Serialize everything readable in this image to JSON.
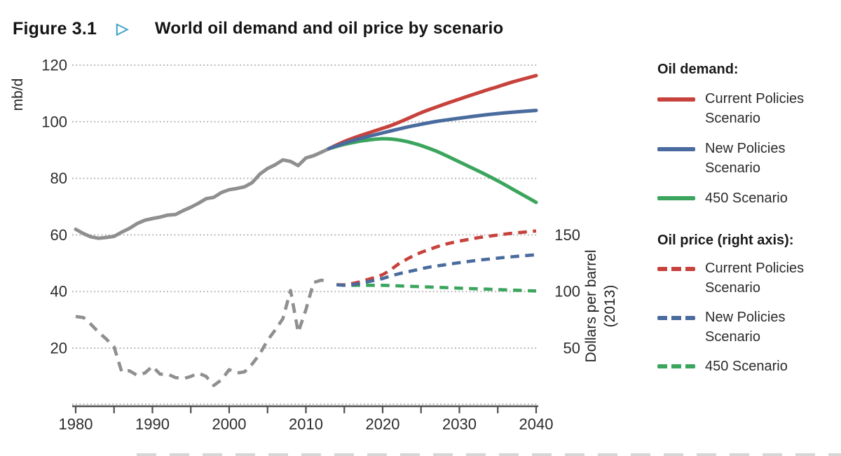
{
  "figure": {
    "label": "Figure 3.1",
    "arrow": "▷",
    "title": "World oil demand and oil price by scenario"
  },
  "colors": {
    "red": "#c7423c",
    "blue": "#4a6b9d",
    "green": "#3ba55d",
    "gray": "#8f8f8f",
    "grid": "#b3b3b3",
    "axis": "#4f4f4f",
    "tick_text": "#2d2d2d",
    "teal_arrow": "#3fa3c4"
  },
  "legend": {
    "demand": {
      "header": "Oil demand:",
      "items": [
        {
          "label": "Current Policies Scenario",
          "color": "red",
          "style": "solid"
        },
        {
          "label": "New Policies Scenario",
          "color": "blue",
          "style": "solid"
        },
        {
          "label": "450 Scenario",
          "color": "green",
          "style": "solid"
        }
      ]
    },
    "price": {
      "header": "Oil price (right axis):",
      "items": [
        {
          "label": "Current Policies Scenario",
          "color": "red",
          "style": "dashed"
        },
        {
          "label": "New Policies Scenario",
          "color": "blue",
          "style": "dashed"
        },
        {
          "label": "450 Scenario",
          "color": "green",
          "style": "dashed"
        }
      ]
    }
  },
  "chart_data": {
    "type": "line",
    "title": "World oil demand and oil price by scenario",
    "x_axis": {
      "range": [
        1980,
        2040
      ],
      "major_ticks": [
        1980,
        1990,
        2000,
        2010,
        2020,
        2030,
        2040
      ],
      "minor_step": 5
    },
    "left_axis": {
      "label": "mb/d",
      "ticks": [
        20,
        40,
        60,
        80,
        100,
        120
      ],
      "range": [
        15,
        125
      ],
      "grid": "dotted"
    },
    "right_axis": {
      "label_line1": "Dollars per barrel",
      "label_line2": "(2013)",
      "ticks": [
        50,
        100,
        150
      ],
      "scale_vs_left": 2.5
    },
    "legend_position": "right",
    "series": [
      {
        "name": "Oil demand - history",
        "axis": "left",
        "color": "gray",
        "style": "solid",
        "smooth": false,
        "points": [
          [
            1980,
            62
          ],
          [
            1981,
            60.5
          ],
          [
            1982,
            59.3
          ],
          [
            1983,
            58.8
          ],
          [
            1984,
            59.1
          ],
          [
            1985,
            59.5
          ],
          [
            1986,
            61
          ],
          [
            1987,
            62.3
          ],
          [
            1988,
            64
          ],
          [
            1989,
            65.2
          ],
          [
            1990,
            65.8
          ],
          [
            1991,
            66.3
          ],
          [
            1992,
            67
          ],
          [
            1993,
            67.2
          ],
          [
            1994,
            68.6
          ],
          [
            1995,
            69.8
          ],
          [
            1996,
            71.2
          ],
          [
            1997,
            72.8
          ],
          [
            1998,
            73.3
          ],
          [
            1999,
            75
          ],
          [
            2000,
            76
          ],
          [
            2001,
            76.4
          ],
          [
            2002,
            77
          ],
          [
            2003,
            78.5
          ],
          [
            2004,
            81.5
          ],
          [
            2005,
            83.5
          ],
          [
            2006,
            84.8
          ],
          [
            2007,
            86.5
          ],
          [
            2008,
            86
          ],
          [
            2009,
            84.5
          ],
          [
            2010,
            87.2
          ],
          [
            2011,
            88
          ],
          [
            2012,
            89.2
          ],
          [
            2013,
            90.5
          ]
        ]
      },
      {
        "name": "Oil demand - 450 Scenario",
        "axis": "left",
        "color": "green",
        "style": "solid",
        "smooth": true,
        "points": [
          [
            2013,
            90.5
          ],
          [
            2015,
            92
          ],
          [
            2017,
            93.1
          ],
          [
            2018,
            93.5
          ],
          [
            2019,
            93.8
          ],
          [
            2020,
            94
          ],
          [
            2021,
            93.9
          ],
          [
            2022,
            93.6
          ],
          [
            2023,
            93.1
          ],
          [
            2024,
            92.4
          ],
          [
            2025,
            91.6
          ],
          [
            2027,
            89.6
          ],
          [
            2029,
            87.1
          ],
          [
            2031,
            84.5
          ],
          [
            2033,
            81.9
          ],
          [
            2035,
            79.1
          ],
          [
            2037,
            76.1
          ],
          [
            2040,
            71.5
          ]
        ]
      },
      {
        "name": "Oil demand - Current Policies Scenario",
        "axis": "left",
        "color": "red",
        "style": "solid",
        "smooth": true,
        "points": [
          [
            2013,
            90.5
          ],
          [
            2015,
            93
          ],
          [
            2017,
            95
          ],
          [
            2019,
            96.8
          ],
          [
            2021,
            98.6
          ],
          [
            2023,
            100.8
          ],
          [
            2025,
            103.2
          ],
          [
            2027,
            105.2
          ],
          [
            2029,
            107.1
          ],
          [
            2031,
            108.9
          ],
          [
            2033,
            110.7
          ],
          [
            2035,
            112.4
          ],
          [
            2037,
            114.1
          ],
          [
            2040,
            116.3
          ]
        ]
      },
      {
        "name": "Oil demand - New Policies Scenario",
        "axis": "left",
        "color": "blue",
        "style": "solid",
        "smooth": true,
        "points": [
          [
            2013,
            90.5
          ],
          [
            2015,
            92.4
          ],
          [
            2017,
            94
          ],
          [
            2019,
            95.4
          ],
          [
            2021,
            96.7
          ],
          [
            2023,
            98
          ],
          [
            2025,
            99.1
          ],
          [
            2027,
            100.1
          ],
          [
            2029,
            100.9
          ],
          [
            2031,
            101.6
          ],
          [
            2033,
            102.3
          ],
          [
            2035,
            102.9
          ],
          [
            2037,
            103.4
          ],
          [
            2040,
            104
          ]
        ]
      },
      {
        "name": "Oil price - history",
        "axis": "right",
        "color": "gray",
        "style": "dashed",
        "smooth": false,
        "points": [
          [
            1980,
            78
          ],
          [
            1981,
            77
          ],
          [
            1982,
            71
          ],
          [
            1983,
            64
          ],
          [
            1984,
            58
          ],
          [
            1985,
            51
          ],
          [
            1986,
            29
          ],
          [
            1987,
            30
          ],
          [
            1988,
            26
          ],
          [
            1989,
            28
          ],
          [
            1990,
            34
          ],
          [
            1991,
            27
          ],
          [
            1992,
            27
          ],
          [
            1993,
            24
          ],
          [
            1994,
            23
          ],
          [
            1995,
            25
          ],
          [
            1996,
            28
          ],
          [
            1997,
            25
          ],
          [
            1998,
            17
          ],
          [
            1999,
            22
          ],
          [
            2000,
            31
          ],
          [
            2001,
            28
          ],
          [
            2002,
            29
          ],
          [
            2003,
            36
          ],
          [
            2004,
            45
          ],
          [
            2005,
            57
          ],
          [
            2006,
            66
          ],
          [
            2007,
            76
          ],
          [
            2008,
            101
          ],
          [
            2009,
            64
          ],
          [
            2010,
            84
          ],
          [
            2011,
            108
          ],
          [
            2012,
            110
          ],
          [
            2013,
            109
          ]
        ]
      },
      {
        "name": "Oil price - 450 Scenario",
        "axis": "right",
        "color": "green",
        "style": "dashed",
        "smooth": true,
        "points": [
          [
            2014,
            106
          ],
          [
            2016,
            105.5
          ],
          [
            2018,
            105.5
          ],
          [
            2020,
            105.5
          ],
          [
            2022,
            105
          ],
          [
            2024,
            104.5
          ],
          [
            2026,
            104
          ],
          [
            2028,
            103.5
          ],
          [
            2030,
            103
          ],
          [
            2032,
            102.5
          ],
          [
            2034,
            102
          ],
          [
            2036,
            101.5
          ],
          [
            2038,
            101
          ],
          [
            2040,
            100.5
          ]
        ]
      },
      {
        "name": "Oil price - Current Policies Scenario",
        "axis": "right",
        "color": "red",
        "style": "dashed",
        "smooth": true,
        "points": [
          [
            2014,
            106
          ],
          [
            2015,
            106
          ],
          [
            2016,
            107
          ],
          [
            2017,
            108.5
          ],
          [
            2018,
            110.5
          ],
          [
            2019,
            112.5
          ],
          [
            2020,
            115
          ],
          [
            2021,
            119
          ],
          [
            2022,
            124
          ],
          [
            2023,
            128
          ],
          [
            2024,
            131.5
          ],
          [
            2025,
            134.5
          ],
          [
            2026,
            137
          ],
          [
            2028,
            141.5
          ],
          [
            2030,
            144.5
          ],
          [
            2032,
            147
          ],
          [
            2034,
            149
          ],
          [
            2036,
            150.8
          ],
          [
            2038,
            152.2
          ],
          [
            2040,
            153.5
          ]
        ]
      },
      {
        "name": "Oil price - New Policies Scenario",
        "axis": "right",
        "color": "blue",
        "style": "dashed",
        "smooth": true,
        "points": [
          [
            2014,
            106
          ],
          [
            2015,
            105.5
          ],
          [
            2016,
            106
          ],
          [
            2017,
            107
          ],
          [
            2018,
            108.5
          ],
          [
            2019,
            110
          ],
          [
            2020,
            111.5
          ],
          [
            2022,
            115.5
          ],
          [
            2024,
            118.5
          ],
          [
            2026,
            121.5
          ],
          [
            2028,
            123.5
          ],
          [
            2030,
            125.5
          ],
          [
            2032,
            127.3
          ],
          [
            2034,
            128.8
          ],
          [
            2036,
            130.2
          ],
          [
            2038,
            131.4
          ],
          [
            2040,
            132.5
          ]
        ]
      }
    ]
  }
}
